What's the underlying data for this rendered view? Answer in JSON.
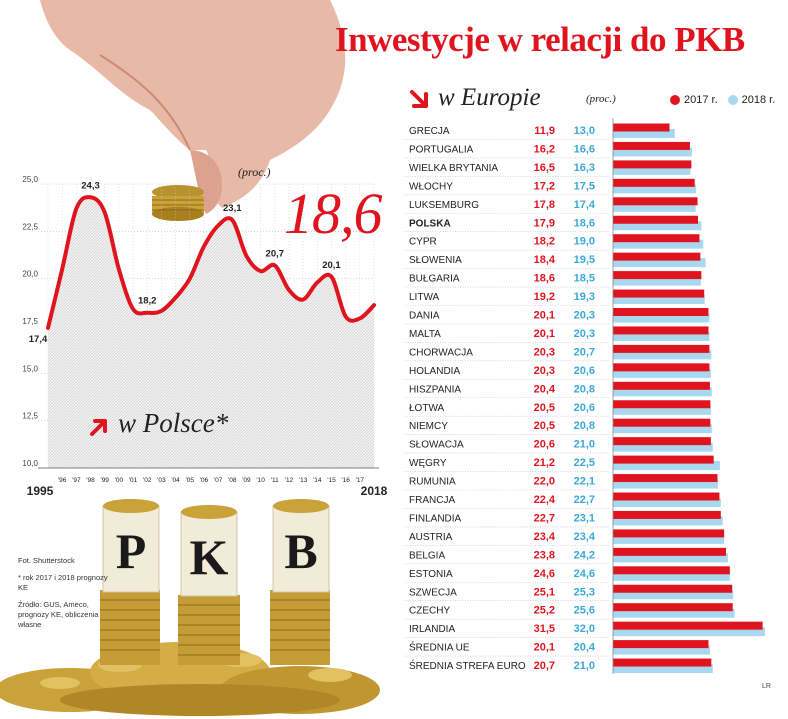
{
  "title": "Inwestycje w relacji do PKB",
  "europe": {
    "title": "w Europie",
    "unit": "(proc.)",
    "legend": [
      {
        "label": "2017 r.",
        "color": "#e0141e"
      },
      {
        "label": "2018 r.",
        "color": "#a8d8f0"
      }
    ]
  },
  "poland": {
    "title": "w Polsce*",
    "unit": "(proc.)",
    "highlight_value": "18,6"
  },
  "illustration": {
    "letters": [
      "P",
      "K",
      "B"
    ]
  },
  "notes": {
    "photo": "Fot. Shutterstock",
    "footnote": "* rok 2017 i 2018 prognozy KE",
    "source": "Źródło: GUS, Ameco, prognozy KE, obliczenia własne"
  },
  "credit": "LR",
  "chart_data": [
    {
      "type": "bar",
      "orientation": "horizontal",
      "title": "w Europie",
      "categories": [
        "GRECJA",
        "PORTUGALIA",
        "WIELKA BRYTANIA",
        "WŁOCHY",
        "LUKSEMBURG",
        "POLSKA",
        "CYPR",
        "SŁOWENIA",
        "BUŁGARIA",
        "LITWA",
        "DANIA",
        "MALTA",
        "CHORWACJA",
        "HOLANDIA",
        "HISZPANIA",
        "ŁOTWA",
        "NIEMCY",
        "SŁOWACJA",
        "WĘGRY",
        "RUMUNIA",
        "FRANCJA",
        "FINLANDIA",
        "AUSTRIA",
        "BELGIA",
        "ESTONIA",
        "SZWECJA",
        "CZECHY",
        "IRLANDIA",
        "ŚREDNIA UE",
        "ŚREDNIA STREFA EURO"
      ],
      "highlight": "POLSKA",
      "series": [
        {
          "name": "2017 r.",
          "color": "#e0141e",
          "labels": [
            "11,9",
            "16,2",
            "16,5",
            "17,2",
            "17,8",
            "17,9",
            "18,2",
            "18,4",
            "18,6",
            "19,2",
            "20,1",
            "20,1",
            "20,3",
            "20,3",
            "20,4",
            "20,5",
            "20,5",
            "20,6",
            "21,2",
            "22,0",
            "22,4",
            "22,7",
            "23,4",
            "23,8",
            "24,6",
            "25,1",
            "25,2",
            "31,5",
            "20,1",
            "20,7"
          ],
          "values": [
            11.9,
            16.2,
            16.5,
            17.2,
            17.8,
            17.9,
            18.2,
            18.4,
            18.6,
            19.2,
            20.1,
            20.1,
            20.3,
            20.3,
            20.4,
            20.5,
            20.5,
            20.6,
            21.2,
            22.0,
            22.4,
            22.7,
            23.4,
            23.8,
            24.6,
            25.1,
            25.2,
            31.5,
            20.1,
            20.7
          ]
        },
        {
          "name": "2018 r.",
          "color": "#a8d8f0",
          "labels": [
            "13,0",
            "16,6",
            "16,3",
            "17,5",
            "17,4",
            "18,6",
            "19,0",
            "19,5",
            "18,5",
            "19,3",
            "20,3",
            "20,3",
            "20,7",
            "20,6",
            "20,8",
            "20,6",
            "20,8",
            "21,0",
            "22,5",
            "22,1",
            "22,7",
            "23,1",
            "23,4",
            "24,2",
            "24,6",
            "25,3",
            "25,6",
            "32,0",
            "20,4",
            "21,0"
          ],
          "values": [
            13.0,
            16.6,
            16.3,
            17.5,
            17.4,
            18.6,
            19.0,
            19.5,
            18.5,
            19.3,
            20.3,
            20.3,
            20.7,
            20.6,
            20.8,
            20.6,
            20.8,
            21.0,
            22.5,
            22.1,
            22.7,
            23.1,
            23.4,
            24.2,
            24.6,
            25.3,
            25.6,
            32.0,
            20.4,
            21.0
          ]
        }
      ]
    },
    {
      "type": "area",
      "title": "w Polsce*",
      "x": [
        "1995",
        "1996",
        "1997",
        "1998",
        "1999",
        "2000",
        "2001",
        "2002",
        "2003",
        "2004",
        "2005",
        "2006",
        "2007",
        "2008",
        "2009",
        "2010",
        "2011",
        "2012",
        "2013",
        "2014",
        "2015",
        "2016",
        "2017",
        "2018"
      ],
      "x_tick_labels": [
        "1995",
        "'96",
        "'97",
        "'98",
        "'99",
        "'00",
        "'01",
        "'02",
        "'03",
        "'04",
        "'05",
        "'06",
        "'07",
        "'08",
        "'09",
        "'10",
        "'11",
        "'12",
        "'13",
        "'14",
        "'15",
        "'16",
        "'17",
        "2018"
      ],
      "values": [
        17.4,
        20.5,
        23.7,
        24.3,
        23.5,
        20.5,
        18.4,
        18.2,
        18.3,
        19.0,
        20.0,
        21.7,
        22.8,
        23.1,
        21.2,
        20.4,
        20.7,
        19.4,
        18.9,
        19.8,
        20.1,
        18.0,
        17.9,
        18.6
      ],
      "annotations": [
        {
          "x": "1995",
          "label": "17,4"
        },
        {
          "x": "1998",
          "label": "24,3"
        },
        {
          "x": "2002",
          "label": "18,2"
        },
        {
          "x": "2008",
          "label": "23,1"
        },
        {
          "x": "2011",
          "label": "20,7"
        },
        {
          "x": "2015",
          "label": "20,1"
        }
      ],
      "y_ticks": [
        "10,0",
        "12,5",
        "15,0",
        "17,5",
        "20,0",
        "22,5",
        "25,0"
      ],
      "ylim": [
        10,
        25
      ],
      "line_color": "#e0141e",
      "grid": true
    }
  ]
}
